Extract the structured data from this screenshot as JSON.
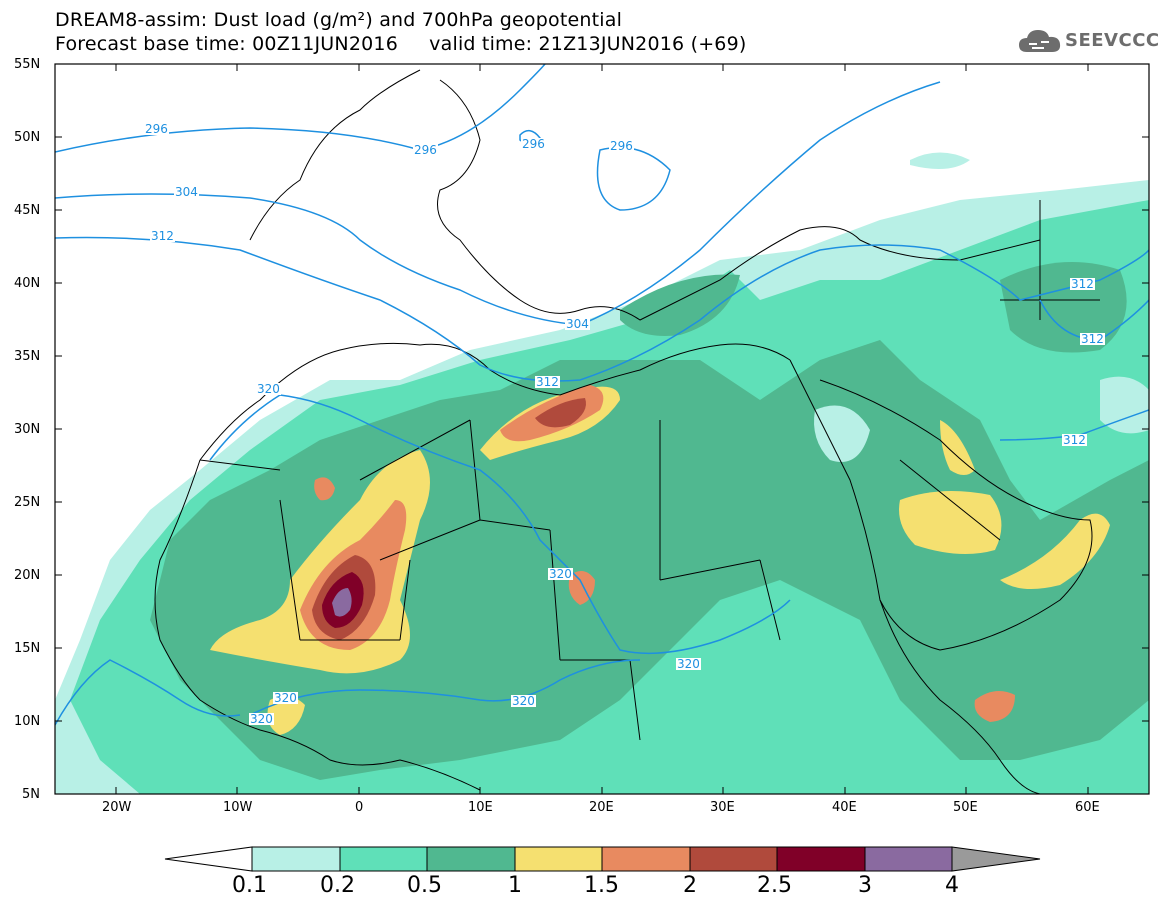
{
  "title": {
    "line1": "DREAM8-assim: Dust load (g/m²) and 700hPa geopotential",
    "line2": "Forecast base time: 00Z11JUN2016     valid time: 21Z13JUN2016 (+69)"
  },
  "logo": {
    "text": "SEEVCCC",
    "icon": "cloud-logo-icon"
  },
  "axes": {
    "lat_labels": [
      "55N",
      "50N",
      "45N",
      "40N",
      "35N",
      "30N",
      "25N",
      "20N",
      "15N",
      "10N",
      "5N"
    ],
    "lon_labels": [
      "20W",
      "10W",
      "0",
      "10E",
      "20E",
      "30E",
      "40E",
      "50E",
      "60E"
    ]
  },
  "colorbar": {
    "labels": [
      "0.1",
      "0.2",
      "0.5",
      "1",
      "1.5",
      "2",
      "2.5",
      "3",
      "4"
    ],
    "colors": [
      "#ffffff",
      "#b8f0e6",
      "#5fe0b8",
      "#50b890",
      "#f5e070",
      "#e88a60",
      "#b04a3c",
      "#800028",
      "#8a6aa0",
      "#9a9a9a"
    ]
  },
  "contour_labels": [
    {
      "text": "296"
    },
    {
      "text": "296"
    },
    {
      "text": "296"
    },
    {
      "text": "296"
    },
    {
      "text": "304"
    },
    {
      "text": "304"
    },
    {
      "text": "312"
    },
    {
      "text": "312"
    },
    {
      "text": "312"
    },
    {
      "text": "312"
    },
    {
      "text": "312"
    },
    {
      "text": "320"
    },
    {
      "text": "320"
    },
    {
      "text": "320"
    },
    {
      "text": "320"
    },
    {
      "text": "320"
    },
    {
      "text": "320"
    }
  ],
  "colors": {
    "contour": "#1e90e0",
    "border": "#000000"
  }
}
